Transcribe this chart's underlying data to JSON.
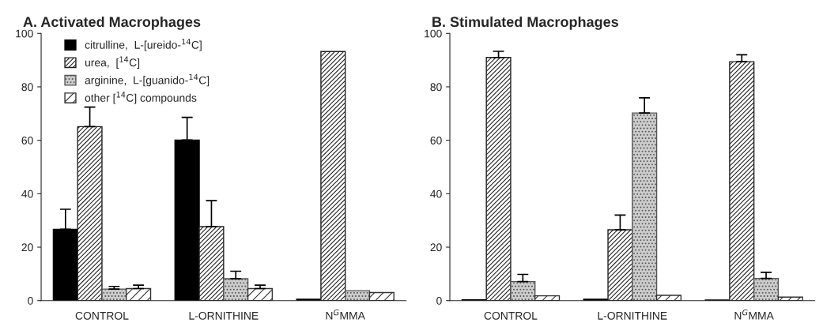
{
  "chart_data": [
    {
      "type": "bar",
      "title": "A. Activated Macrophages",
      "categories": [
        "CONTROL",
        "L-ORNITHINE",
        "N$^{G}$MMA"
      ],
      "ylim": [
        0,
        100
      ],
      "yticks": [
        0,
        20,
        40,
        60,
        80,
        100
      ],
      "legend": "top left",
      "grid": false,
      "series": [
        {
          "name": "citrulline,  L-[ureido-$^{14}$C]",
          "color": "#000000",
          "values": [
            26.7,
            60.1,
            0.5
          ],
          "errors": [
            [
              26.7,
              34.2
            ],
            [
              60.1,
              68.6
            ],
            null
          ]
        },
        {
          "name": "urea,  [$^{14}$C]",
          "color": "#222222",
          "values": [
            65.1,
            27.7,
            93.2
          ],
          "errors": [
            [
              65.1,
              72.4
            ],
            [
              27.7,
              37.4
            ],
            null
          ]
        },
        {
          "name": "arginine,  L-[guanido-$^{14}$C]",
          "color": "#555555",
          "values": [
            4.3,
            8.2,
            3.7
          ],
          "errors": [
            [
              4.3,
              5.3
            ],
            [
              8.2,
              11.0
            ],
            null
          ]
        },
        {
          "name": "other [$^{14}$C] compounds",
          "color": "#333333",
          "values": [
            4.5,
            4.5,
            3.0
          ],
          "errors": [
            [
              4.5,
              5.8
            ],
            [
              4.5,
              5.8
            ],
            null
          ]
        }
      ]
    },
    {
      "type": "bar",
      "title": "B. Stimulated Macrophages",
      "categories": [
        "CONTROL",
        "L-ORNITHINE",
        "N$^{G}$MMA"
      ],
      "ylim": [
        0,
        100
      ],
      "yticks": [
        0,
        20,
        40,
        60,
        80,
        100
      ],
      "grid": false,
      "series": [
        {
          "color": "#000000",
          "values": [
            0.3,
            0.5,
            0.2
          ]
        },
        {
          "color": "#222222",
          "values": [
            91.0,
            26.5,
            89.4
          ],
          "errors": [
            [
              91.0,
              93.3
            ],
            [
              26.5,
              32.0
            ],
            [
              89.4,
              92.0
            ]
          ]
        },
        {
          "color": "#555555",
          "values": [
            7.1,
            70.2,
            8.3
          ],
          "errors": [
            [
              7.1,
              9.8
            ],
            [
              70.2,
              75.9
            ],
            [
              8.3,
              10.6
            ]
          ]
        },
        {
          "color": "#333333",
          "values": [
            1.8,
            2.0,
            1.3
          ]
        }
      ]
    }
  ]
}
